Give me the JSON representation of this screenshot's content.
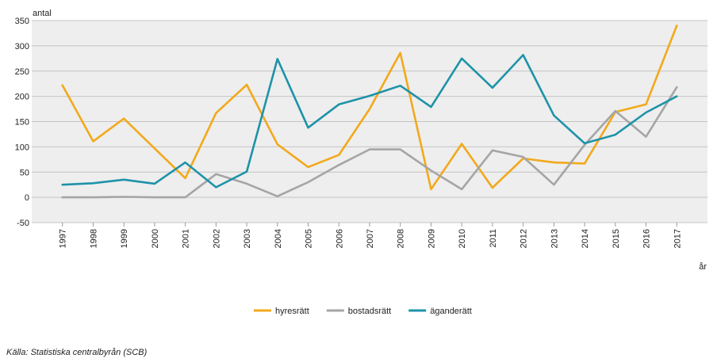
{
  "chart_data": {
    "type": "line",
    "ylabel": "antal",
    "xlabel": "år",
    "ylim": [
      -50,
      350
    ],
    "yticks": [
      350,
      300,
      250,
      200,
      150,
      100,
      50,
      0,
      -50
    ],
    "grid": true,
    "legend_position": "bottom",
    "categories": [
      "1997",
      "1998",
      "1999",
      "2000",
      "2001",
      "2002",
      "2003",
      "2004",
      "2005",
      "2006",
      "2007",
      "2008",
      "2009",
      "2010",
      "2011",
      "2012",
      "2013",
      "2014",
      "2015",
      "2016",
      "2017"
    ],
    "series": [
      {
        "name": "hyresrätt",
        "color": "#f2a91c",
        "values": [
          222,
          111,
          156,
          97,
          38,
          167,
          223,
          105,
          60,
          84,
          175,
          286,
          16,
          106,
          19,
          77,
          69,
          67,
          169,
          184,
          340
        ]
      },
      {
        "name": "bostadsrätt",
        "color": "#a5a5a5",
        "values": [
          0,
          0,
          1,
          0,
          0,
          46,
          27,
          2,
          30,
          64,
          95,
          95,
          53,
          16,
          93,
          80,
          25,
          104,
          171,
          120,
          218
        ]
      },
      {
        "name": "äganderätt",
        "color": "#1e93a8",
        "values": [
          25,
          28,
          35,
          27,
          69,
          20,
          51,
          274,
          138,
          184,
          201,
          221,
          179,
          275,
          217,
          282,
          162,
          107,
          124,
          168,
          200
        ]
      }
    ]
  },
  "source": "Källa: Statistiska centralbyrån (SCB)"
}
